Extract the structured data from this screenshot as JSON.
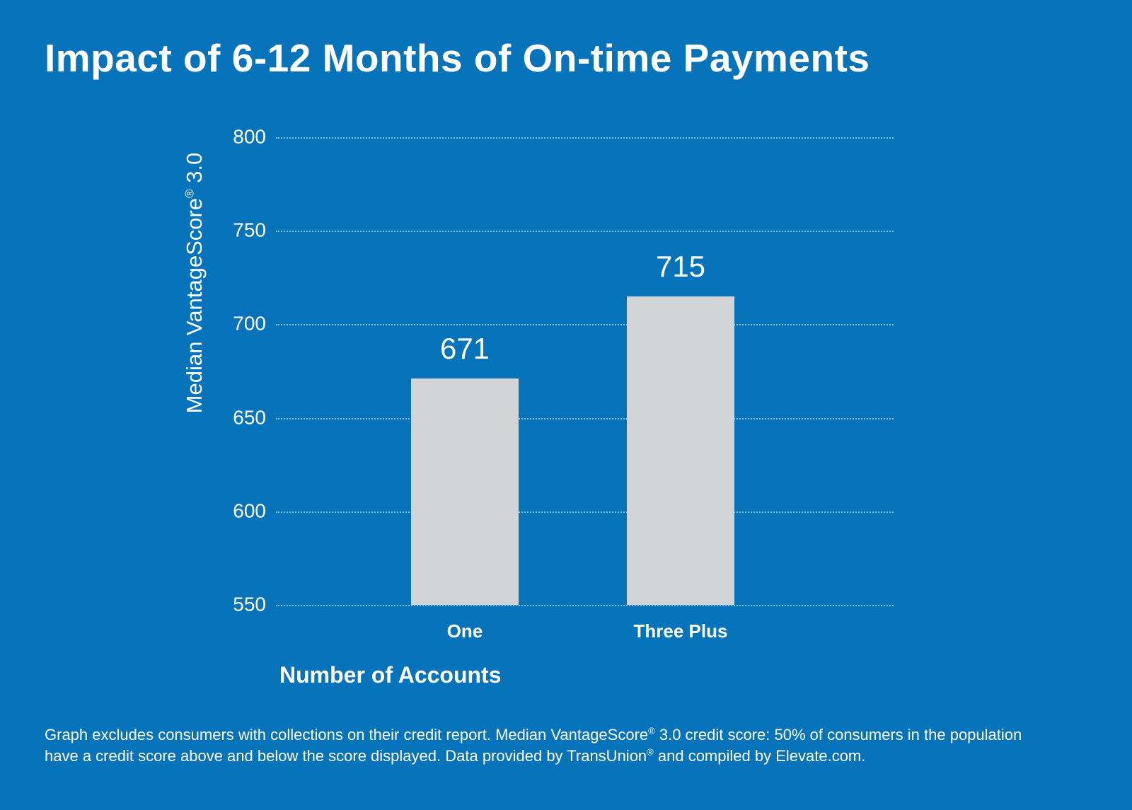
{
  "title": "Impact of 6-12 Months of On-time Payments",
  "colors": {
    "background": "#0673bb",
    "bar": "#d3d4d6",
    "text": "#ffffff",
    "gridline": "#ffffff8c"
  },
  "y_axis": {
    "label_prefix": "Median VantageScore",
    "label_reg": "®",
    "label_suffix": " 3.0"
  },
  "chart_data": {
    "type": "bar",
    "categories": [
      "One",
      "Three Plus"
    ],
    "values": [
      671,
      715
    ],
    "bar_labels": [
      "671",
      "715"
    ],
    "title": "Impact of 6-12 Months of On-time Payments",
    "xlabel": "Number of Accounts",
    "ylabel": "Median VantageScore® 3.0",
    "ylim": [
      550,
      800
    ],
    "yticks": [
      800,
      750,
      700,
      650,
      600,
      550
    ],
    "grid": "horizontal dotted, behind bars",
    "legend": "none"
  },
  "footnote": {
    "parts": [
      {
        "text": "Graph excludes consumers with collections on their credit report. Median VantageScore",
        "sup": false
      },
      {
        "text": "®",
        "sup": true
      },
      {
        "text": " 3.0 credit score: 50% of consumers in the population have a credit score above and below the score displayed. Data provided by TransUnion",
        "sup": false
      },
      {
        "text": "®",
        "sup": true
      },
      {
        "text": " and compiled by Elevate.com.",
        "sup": false
      }
    ]
  }
}
